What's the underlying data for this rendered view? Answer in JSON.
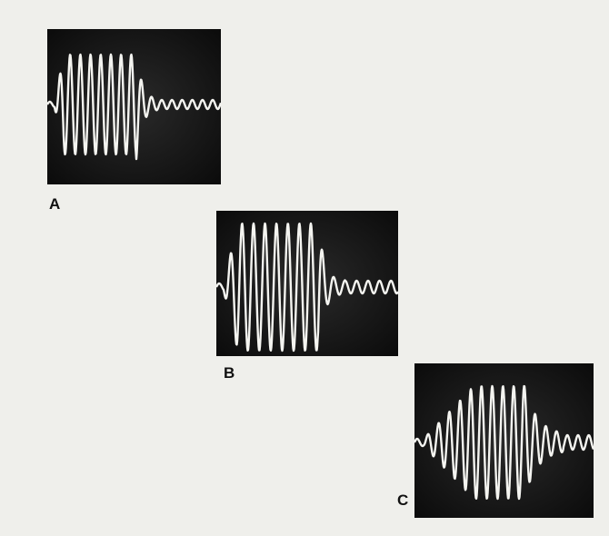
{
  "figure": {
    "panels": [
      {
        "label": "A"
      },
      {
        "label": "B"
      },
      {
        "label": "C"
      }
    ]
  }
}
